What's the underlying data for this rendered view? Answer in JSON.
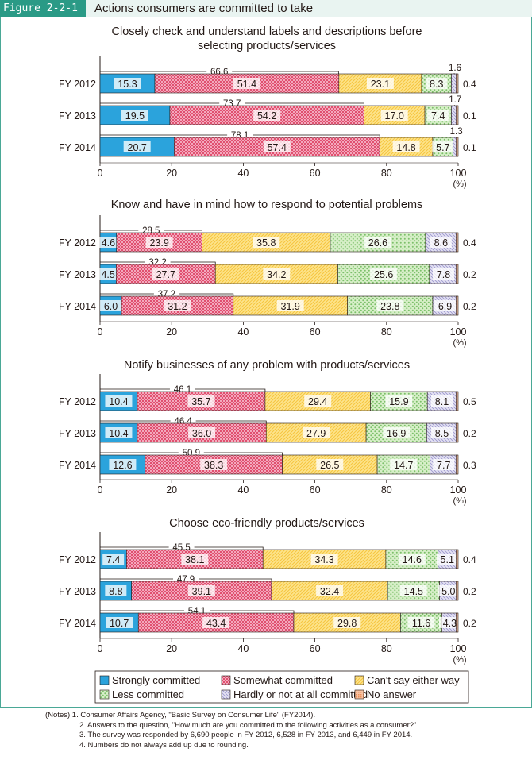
{
  "figure": {
    "label": "Figure 2-2-1",
    "title": "Actions consumers are committed to take"
  },
  "chart_data": {
    "type": "bar",
    "orientation": "horizontal",
    "stacked": true,
    "percent_unit": "(%)",
    "x_ticks": [
      "0",
      "20",
      "40",
      "60",
      "80",
      "100"
    ],
    "xlim": [
      0,
      100
    ],
    "legend": [
      "Strongly committed",
      "Somewhat committed",
      "Can't say either way",
      "Less committed",
      "Hardly or not at all committed",
      "No answer"
    ],
    "colors": [
      "#2ba3dc",
      "#ee8ba6",
      "#fbdd75",
      "#b7dfa3",
      "#c9c6e4",
      "#f5b38c"
    ],
    "panels": [
      {
        "title_lines": [
          "Closely check and understand labels and descriptions before",
          "selecting products/services"
        ],
        "categories": [
          "FY 2012",
          "FY 2013",
          "FY 2014"
        ],
        "series_values": [
          [
            15.3,
            51.4,
            23.1,
            8.3,
            1.6,
            0.4
          ],
          [
            19.5,
            54.2,
            17.0,
            7.4,
            1.7,
            0.1
          ],
          [
            20.7,
            57.4,
            14.8,
            5.7,
            1.3,
            0.1
          ]
        ],
        "labels": [
          [
            "15.3",
            "51.4",
            "23.1",
            "8.3",
            "1.6",
            "0.4"
          ],
          [
            "19.5",
            "54.2",
            "17.0",
            "7.4",
            "1.7",
            "0.1"
          ],
          [
            "20.7",
            "57.4",
            "14.8",
            "5.7",
            "1.3",
            "0.1"
          ]
        ],
        "totals": [
          66.6,
          73.7,
          78.1
        ],
        "total_labels": [
          "66.6",
          "73.7",
          "78.1"
        ],
        "small_above": [
          4
        ]
      },
      {
        "title_lines": [
          "Know and have in mind how to respond to potential problems"
        ],
        "categories": [
          "FY 2012",
          "FY 2013",
          "FY 2014"
        ],
        "series_values": [
          [
            4.6,
            23.9,
            35.8,
            26.6,
            8.6,
            0.4
          ],
          [
            4.5,
            27.7,
            34.2,
            25.6,
            7.8,
            0.2
          ],
          [
            6.0,
            31.2,
            31.9,
            23.8,
            6.9,
            0.2
          ]
        ],
        "labels": [
          [
            "4.6",
            "23.9",
            "35.8",
            "26.6",
            "8.6",
            "0.4"
          ],
          [
            "4.5",
            "27.7",
            "34.2",
            "25.6",
            "7.8",
            "0.2"
          ],
          [
            "6.0",
            "31.2",
            "31.9",
            "23.8",
            "6.9",
            "0.2"
          ]
        ],
        "totals": [
          28.5,
          32.2,
          37.2
        ],
        "total_labels": [
          "28.5",
          "32.2",
          "37.2"
        ],
        "small_above": []
      },
      {
        "title_lines": [
          "Notify businesses of any problem with products/services"
        ],
        "categories": [
          "FY 2012",
          "FY 2013",
          "FY 2014"
        ],
        "series_values": [
          [
            10.4,
            35.7,
            29.4,
            15.9,
            8.1,
            0.5
          ],
          [
            10.4,
            36.0,
            27.9,
            16.9,
            8.5,
            0.2
          ],
          [
            12.6,
            38.3,
            26.5,
            14.7,
            7.7,
            0.3
          ]
        ],
        "labels": [
          [
            "10.4",
            "35.7",
            "29.4",
            "15.9",
            "8.1",
            "0.5"
          ],
          [
            "10.4",
            "36.0",
            "27.9",
            "16.9",
            "8.5",
            "0.2"
          ],
          [
            "12.6",
            "38.3",
            "26.5",
            "14.7",
            "7.7",
            "0.3"
          ]
        ],
        "totals": [
          46.1,
          46.4,
          50.9
        ],
        "total_labels": [
          "46.1",
          "46.4",
          "50.9"
        ],
        "small_above": []
      },
      {
        "title_lines": [
          "Choose eco-friendly products/services"
        ],
        "categories": [
          "FY 2012",
          "FY 2013",
          "FY 2014"
        ],
        "series_values": [
          [
            7.4,
            38.1,
            34.3,
            14.6,
            5.1,
            0.4
          ],
          [
            8.8,
            39.1,
            32.4,
            14.5,
            5.0,
            0.2
          ],
          [
            10.7,
            43.4,
            29.8,
            11.6,
            4.3,
            0.2
          ]
        ],
        "labels": [
          [
            "7.4",
            "38.1",
            "34.3",
            "14.6",
            "5.1",
            "0.4"
          ],
          [
            "8.8",
            "39.1",
            "32.4",
            "14.5",
            "5.0",
            "0.2"
          ],
          [
            "10.7",
            "43.4",
            "29.8",
            "11.6",
            "4.3",
            "0.2"
          ]
        ],
        "totals": [
          45.5,
          47.9,
          54.1
        ],
        "total_labels": [
          "45.5",
          "47.9",
          "54.1"
        ],
        "small_above": []
      }
    ]
  },
  "notes": {
    "prefix": "(Notes)",
    "lines": [
      "1. Consumer Affairs Agency, \"Basic Survey on Consumer Life\" (FY2014).",
      "2. Answers to the question, \"How much are you committed to the following activities as a consumer?\"",
      "3. The survey was responded by 6,690 people in FY 2012, 6,528 in FY 2013, and 6,449 in FY 2014.",
      "4. Numbers do not always add up due to rounding."
    ]
  }
}
